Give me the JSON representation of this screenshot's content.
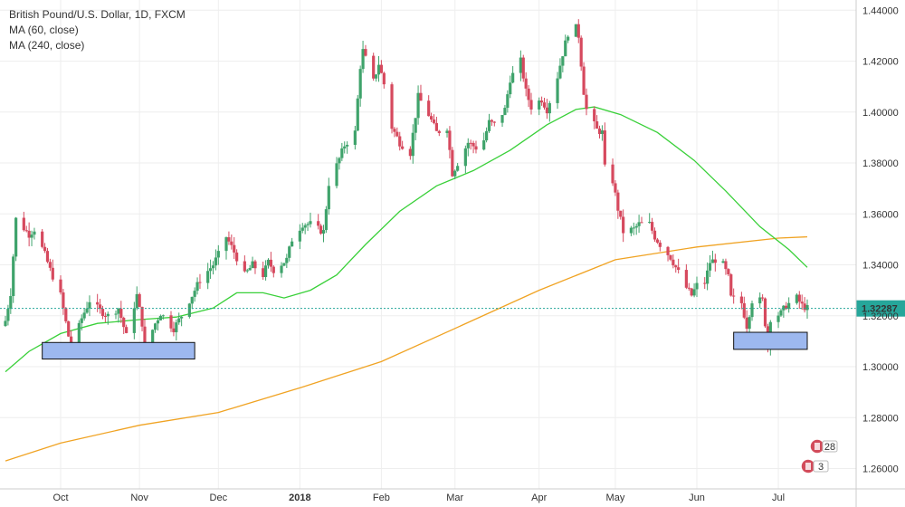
{
  "legend": {
    "title": "British Pound/U.S. Dollar, 1D, FXCM",
    "ma60": "MA (60, close)",
    "ma240": "MA (240, close)"
  },
  "badges": {
    "top_count": "28",
    "bottom_count": "3"
  },
  "colors": {
    "up": "#3fa36b",
    "down": "#d6495e",
    "ma60": "#39d039",
    "ma240": "#f0a323",
    "price_line": "#26a69a",
    "price_label_bg": "#26a69a",
    "box_fill": "#9db8ef",
    "grid": "#eeeeee"
  },
  "chart_data": {
    "type": "candlestick",
    "title": "British Pound/U.S. Dollar, 1D, FXCM",
    "ylim": [
      1.252,
      1.444
    ],
    "yticks": [
      "1.26000",
      "1.28000",
      "1.30000",
      "1.32000",
      "1.34000",
      "1.36000",
      "1.38000",
      "1.40000",
      "1.42000",
      "1.44000"
    ],
    "xticks": [
      {
        "label": "Oct",
        "date": "2017-10-02",
        "bold": false
      },
      {
        "label": "Nov",
        "date": "2017-11-01",
        "bold": false
      },
      {
        "label": "Dec",
        "date": "2017-12-01",
        "bold": false
      },
      {
        "label": "2018",
        "date": "2018-01-01",
        "bold": true
      },
      {
        "label": "Feb",
        "date": "2018-02-01",
        "bold": false
      },
      {
        "label": "Mar",
        "date": "2018-03-01",
        "bold": false
      },
      {
        "label": "Apr",
        "date": "2018-04-02",
        "bold": false
      },
      {
        "label": "May",
        "date": "2018-05-01",
        "bold": false
      },
      {
        "label": "Jun",
        "date": "2018-06-01",
        "bold": false
      },
      {
        "label": "Jul",
        "date": "2018-07-02",
        "bold": false
      }
    ],
    "date_range": [
      "2017-09-11",
      "2018-07-13"
    ],
    "current_price": 1.32287,
    "current_price_label": "1.32287",
    "close_anchors": [
      [
        "2017-09-11",
        1.318
      ],
      [
        "2017-09-13",
        1.329
      ],
      [
        "2017-09-15",
        1.358
      ],
      [
        "2017-09-20",
        1.352
      ],
      [
        "2017-09-22",
        1.354
      ],
      [
        "2017-09-26",
        1.344
      ],
      [
        "2017-09-28",
        1.338
      ],
      [
        "2017-10-02",
        1.328
      ],
      [
        "2017-10-05",
        1.312
      ],
      [
        "2017-10-06",
        1.306
      ],
      [
        "2017-10-10",
        1.319
      ],
      [
        "2017-10-13",
        1.326
      ],
      [
        "2017-10-17",
        1.322
      ],
      [
        "2017-10-20",
        1.32
      ],
      [
        "2017-10-24",
        1.323
      ],
      [
        "2017-10-27",
        1.312
      ],
      [
        "2017-10-31",
        1.328
      ],
      [
        "2017-11-02",
        1.317
      ],
      [
        "2017-11-03",
        1.307
      ],
      [
        "2017-11-07",
        1.317
      ],
      [
        "2017-11-09",
        1.321
      ],
      [
        "2017-11-14",
        1.315
      ],
      [
        "2017-11-17",
        1.32
      ],
      [
        "2017-11-21",
        1.328
      ],
      [
        "2017-11-24",
        1.334
      ],
      [
        "2017-11-29",
        1.34
      ],
      [
        "2017-12-01",
        1.344
      ],
      [
        "2017-12-04",
        1.351
      ],
      [
        "2017-12-07",
        1.345
      ],
      [
        "2017-12-11",
        1.336
      ],
      [
        "2017-12-14",
        1.34
      ],
      [
        "2017-12-18",
        1.336
      ],
      [
        "2017-12-20",
        1.341
      ],
      [
        "2017-12-22",
        1.338
      ],
      [
        "2017-12-27",
        1.342
      ],
      [
        "2017-12-29",
        1.35
      ],
      [
        "2018-01-02",
        1.356
      ],
      [
        "2018-01-05",
        1.356
      ],
      [
        "2018-01-08",
        1.354
      ],
      [
        "2018-01-10",
        1.353
      ],
      [
        "2018-01-12",
        1.372
      ],
      [
        "2018-01-15",
        1.379
      ],
      [
        "2018-01-18",
        1.387
      ],
      [
        "2018-01-22",
        1.392
      ],
      [
        "2018-01-24",
        1.418
      ],
      [
        "2018-01-25",
        1.424
      ],
      [
        "2018-01-29",
        1.412
      ],
      [
        "2018-01-31",
        1.419
      ],
      [
        "2018-02-02",
        1.411
      ],
      [
        "2018-02-05",
        1.394
      ],
      [
        "2018-02-08",
        1.388
      ],
      [
        "2018-02-12",
        1.384
      ],
      [
        "2018-02-15",
        1.406
      ],
      [
        "2018-02-19",
        1.399
      ],
      [
        "2018-02-22",
        1.392
      ],
      [
        "2018-02-26",
        1.394
      ],
      [
        "2018-02-28",
        1.376
      ],
      [
        "2018-03-02",
        1.38
      ],
      [
        "2018-03-06",
        1.388
      ],
      [
        "2018-03-09",
        1.386
      ],
      [
        "2018-03-12",
        1.389
      ],
      [
        "2018-03-14",
        1.396
      ],
      [
        "2018-03-16",
        1.395
      ],
      [
        "2018-03-20",
        1.401
      ],
      [
        "2018-03-22",
        1.413
      ],
      [
        "2018-03-26",
        1.42
      ],
      [
        "2018-03-28",
        1.408
      ],
      [
        "2018-03-30",
        1.402
      ],
      [
        "2018-04-03",
        1.405
      ],
      [
        "2018-04-05",
        1.401
      ],
      [
        "2018-04-09",
        1.414
      ],
      [
        "2018-04-11",
        1.423
      ],
      [
        "2018-04-13",
        1.431
      ],
      [
        "2018-04-16",
        1.433
      ],
      [
        "2018-04-17",
        1.43
      ],
      [
        "2018-04-19",
        1.408
      ],
      [
        "2018-04-20",
        1.401
      ],
      [
        "2018-04-24",
        1.393
      ],
      [
        "2018-04-26",
        1.392
      ],
      [
        "2018-04-27",
        1.378
      ],
      [
        "2018-04-30",
        1.373
      ],
      [
        "2018-05-02",
        1.362
      ],
      [
        "2018-05-04",
        1.353
      ],
      [
        "2018-05-08",
        1.354
      ],
      [
        "2018-05-10",
        1.356
      ],
      [
        "2018-05-14",
        1.356
      ],
      [
        "2018-05-16",
        1.351
      ],
      [
        "2018-05-18",
        1.348
      ],
      [
        "2018-05-22",
        1.343
      ],
      [
        "2018-05-24",
        1.339
      ],
      [
        "2018-05-28",
        1.331
      ],
      [
        "2018-05-30",
        1.328
      ],
      [
        "2018-06-01",
        1.332
      ],
      [
        "2018-06-04",
        1.333
      ],
      [
        "2018-06-06",
        1.341
      ],
      [
        "2018-06-08",
        1.342
      ],
      [
        "2018-06-11",
        1.34
      ],
      [
        "2018-06-13",
        1.335
      ],
      [
        "2018-06-14",
        1.327
      ],
      [
        "2018-06-18",
        1.325
      ],
      [
        "2018-06-20",
        1.316
      ],
      [
        "2018-06-22",
        1.326
      ],
      [
        "2018-06-26",
        1.326
      ],
      [
        "2018-06-28",
        1.308
      ],
      [
        "2018-06-29",
        1.319
      ],
      [
        "2018-07-03",
        1.321
      ],
      [
        "2018-07-05",
        1.324
      ],
      [
        "2018-07-09",
        1.327
      ],
      [
        "2018-07-11",
        1.324
      ],
      [
        "2018-07-13",
        1.3229
      ]
    ],
    "ma60_points": [
      [
        "2017-09-11",
        1.298
      ],
      [
        "2017-09-20",
        1.306
      ],
      [
        "2017-10-02",
        1.313
      ],
      [
        "2017-10-16",
        1.317
      ],
      [
        "2017-11-01",
        1.3185
      ],
      [
        "2017-11-15",
        1.3195
      ],
      [
        "2017-11-29",
        1.323
      ],
      [
        "2017-12-08",
        1.329
      ],
      [
        "2017-12-18",
        1.329
      ],
      [
        "2017-12-26",
        1.327
      ],
      [
        "2018-01-05",
        1.33
      ],
      [
        "2018-01-15",
        1.336
      ],
      [
        "2018-01-26",
        1.348
      ],
      [
        "2018-02-08",
        1.361
      ],
      [
        "2018-02-22",
        1.371
      ],
      [
        "2018-03-08",
        1.377
      ],
      [
        "2018-03-22",
        1.385
      ],
      [
        "2018-04-05",
        1.395
      ],
      [
        "2018-04-16",
        1.401
      ],
      [
        "2018-04-23",
        1.402
      ],
      [
        "2018-05-03",
        1.399
      ],
      [
        "2018-05-17",
        1.392
      ],
      [
        "2018-05-31",
        1.381
      ],
      [
        "2018-06-12",
        1.369
      ],
      [
        "2018-06-25",
        1.355
      ],
      [
        "2018-07-06",
        1.346
      ],
      [
        "2018-07-13",
        1.339
      ]
    ],
    "ma240_points": [
      [
        "2017-09-11",
        1.263
      ],
      [
        "2017-10-02",
        1.27
      ],
      [
        "2017-11-01",
        1.277
      ],
      [
        "2017-12-01",
        1.282
      ],
      [
        "2018-01-02",
        1.292
      ],
      [
        "2018-02-01",
        1.302
      ],
      [
        "2018-03-01",
        1.315
      ],
      [
        "2018-04-02",
        1.33
      ],
      [
        "2018-05-01",
        1.342
      ],
      [
        "2018-06-01",
        1.347
      ],
      [
        "2018-07-02",
        1.3505
      ],
      [
        "2018-07-13",
        1.351
      ]
    ],
    "support_boxes": [
      {
        "x0": "2017-09-25",
        "x1": "2017-11-22",
        "y0": 1.303,
        "y1": 1.3095
      },
      {
        "x0": "2018-06-15",
        "x1": "2018-07-13",
        "y0": 1.3068,
        "y1": 1.3135
      }
    ]
  }
}
